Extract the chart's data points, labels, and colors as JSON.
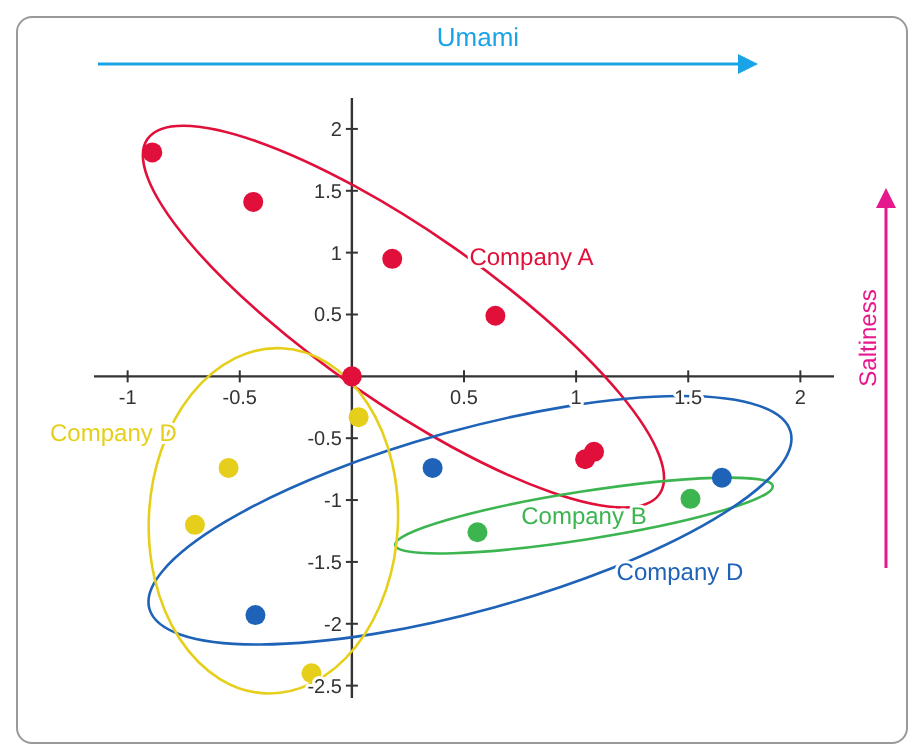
{
  "chart_data": {
    "type": "scatter",
    "xlabel": "Umami",
    "ylabel": "Saltiness",
    "series": [
      {
        "name": "Company A",
        "color": "#e0103a",
        "x": [
          -0.89,
          -0.44,
          0.18,
          0.64,
          0,
          1.04,
          1.08
        ],
        "values": [
          1.81,
          1.41,
          0.95,
          0.49,
          0,
          -0.67,
          -0.61
        ]
      },
      {
        "name": "Company B",
        "color": "#3cb550",
        "x": [
          0.56,
          1.51
        ],
        "values": [
          -1.26,
          -0.99
        ]
      },
      {
        "name": "Company D",
        "color": "#1e63b8",
        "x": [
          0.36,
          1.65,
          -0.43
        ],
        "values": [
          -0.74,
          -0.82,
          -1.93
        ]
      },
      {
        "name": "Company D",
        "color": "#e6cf1a",
        "x": [
          0.03,
          -0.55,
          -0.7,
          -0.18
        ],
        "values": [
          -0.33,
          -0.74,
          -1.2,
          -2.4
        ]
      }
    ],
    "xlim": [
      -1.15,
      2.15
    ],
    "xticks": [
      -1,
      -0.5,
      0.5,
      1,
      1.5,
      2
    ],
    "ylim": [
      -2.6,
      2.25
    ],
    "yticks": [
      2,
      1.5,
      1,
      0.5,
      -0.5,
      -1,
      -1.5,
      -2,
      -2.5
    ],
    "grid": false,
    "legend": false,
    "marker": "circle"
  }
}
